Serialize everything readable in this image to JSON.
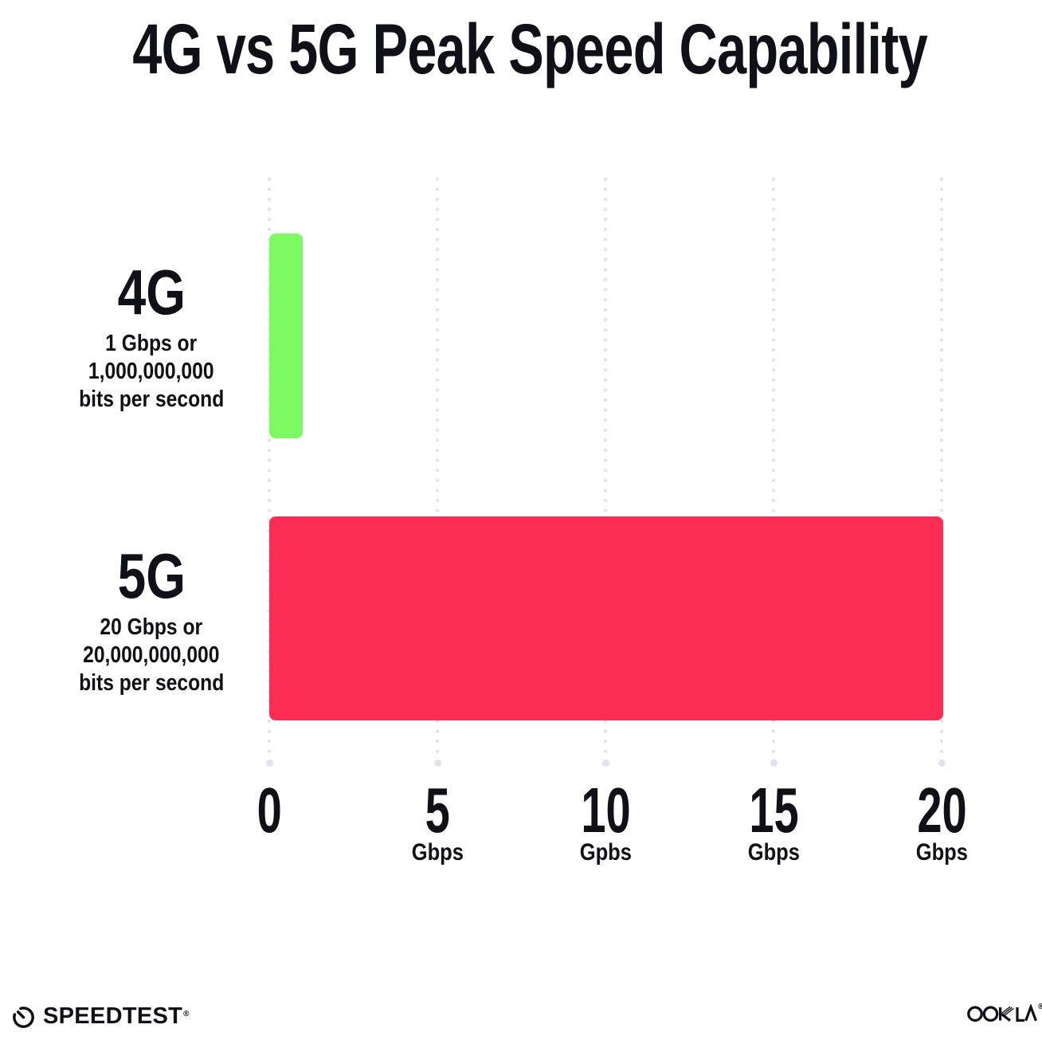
{
  "title": "4G vs 5G Peak Speed Capability",
  "colors": {
    "background": "#FFFFFF",
    "text": "#101018",
    "grid_dot": "#E0E2EE",
    "bar_4g_green": "#7DFA62",
    "bar_5g_red": "#FE2D56"
  },
  "chart_data": {
    "type": "bar",
    "orientation": "horizontal",
    "title": "4G vs 5G Peak Speed Capability",
    "categories": [
      "4G",
      "5G"
    ],
    "values": [
      1,
      20
    ],
    "value_unit": "Gbps",
    "xlim": [
      0,
      20
    ],
    "bar_colors": [
      "#7DFA62",
      "#FE2D56"
    ],
    "grid": "dotted vertical gridlines at each x tick",
    "legend": "none",
    "x_ticks": [
      {
        "value": "0",
        "unit": ""
      },
      {
        "value": "5",
        "unit": "Gbps"
      },
      {
        "value": "10",
        "unit": "Gpbs"
      },
      {
        "value": "15",
        "unit": "Gbps"
      },
      {
        "value": "20",
        "unit": "Gbps"
      }
    ],
    "series_labels": [
      {
        "name": "4G",
        "description_lines": [
          "1 Gbps or",
          "1,000,000,000",
          "bits per second"
        ]
      },
      {
        "name": "5G",
        "description_lines": [
          "20 Gbps or",
          "20,000,000,000",
          "bits per second"
        ]
      }
    ]
  },
  "footer": {
    "speedtest_text": "SPEEDTEST",
    "speedtest_mark": "®",
    "ookla_text": "OOKLA",
    "ookla_mark": "®"
  }
}
